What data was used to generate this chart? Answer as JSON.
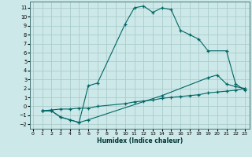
{
  "xlabel": "Humidex (Indice chaleur)",
  "bg_color": "#cde8e8",
  "grid_color": "#aacccc",
  "line_color": "#006666",
  "line1_x": [
    1,
    2,
    3,
    5,
    6,
    7,
    10,
    11,
    12,
    13,
    14,
    15,
    16,
    17,
    18,
    19,
    21,
    22,
    23
  ],
  "line1_y": [
    -0.5,
    -0.5,
    -1.2,
    -1.8,
    2.3,
    2.6,
    9.2,
    11.0,
    11.2,
    10.5,
    11.0,
    10.8,
    8.5,
    8.0,
    7.5,
    6.2,
    6.2,
    2.5,
    1.8
  ],
  "line2_x": [
    1,
    2,
    3,
    4,
    5,
    6,
    14,
    19,
    20,
    21,
    22,
    23
  ],
  "line2_y": [
    -0.5,
    -0.5,
    -1.2,
    -1.5,
    -1.8,
    -1.5,
    1.2,
    3.2,
    3.5,
    2.5,
    2.2,
    2.0
  ],
  "line3_x": [
    1,
    2,
    3,
    4,
    5,
    6,
    7,
    10,
    11,
    12,
    13,
    14,
    15,
    16,
    17,
    18,
    19,
    20,
    21,
    22,
    23
  ],
  "line3_y": [
    -0.5,
    -0.4,
    -0.3,
    -0.3,
    -0.2,
    -0.2,
    0.0,
    0.3,
    0.5,
    0.6,
    0.7,
    0.9,
    1.0,
    1.1,
    1.2,
    1.3,
    1.5,
    1.6,
    1.7,
    1.8,
    2.0
  ],
  "xlim": [
    -0.3,
    23.5
  ],
  "ylim": [
    -2.5,
    11.7
  ],
  "xticks": [
    0,
    1,
    2,
    3,
    4,
    5,
    6,
    7,
    8,
    9,
    10,
    11,
    12,
    13,
    14,
    15,
    16,
    17,
    18,
    19,
    20,
    21,
    22,
    23
  ],
  "yticks": [
    -2,
    -1,
    0,
    1,
    2,
    3,
    4,
    5,
    6,
    7,
    8,
    9,
    10,
    11
  ]
}
